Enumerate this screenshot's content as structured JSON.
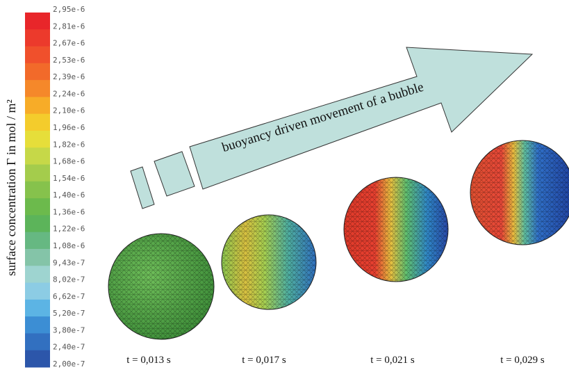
{
  "colorbar": {
    "title": "surface concentration Γ in mol / m²",
    "labels": [
      "2,95e-6",
      "2,81e-6",
      "2,67e-6",
      "2,53e-6",
      "2,39e-6",
      "2,24e-6",
      "2,10e-6",
      "1,96e-6",
      "1,82e-6",
      "1,68e-6",
      "1,54e-6",
      "1,40e-6",
      "1,36e-6",
      "1,22e-6",
      "1,08e-6",
      "9,43e-7",
      "8,02e-7",
      "6,62e-7",
      "5,20e-7",
      "3,80e-7",
      "2,40e-7",
      "2,00e-7"
    ]
  },
  "arrow": {
    "label": "buoyancy driven movement of a bubble"
  },
  "bubbles": [
    {
      "time": "t = 0,013 s"
    },
    {
      "time": "t = 0,017 s"
    },
    {
      "time": "t = 0,021 s"
    },
    {
      "time": "t = 0,029 s"
    }
  ]
}
